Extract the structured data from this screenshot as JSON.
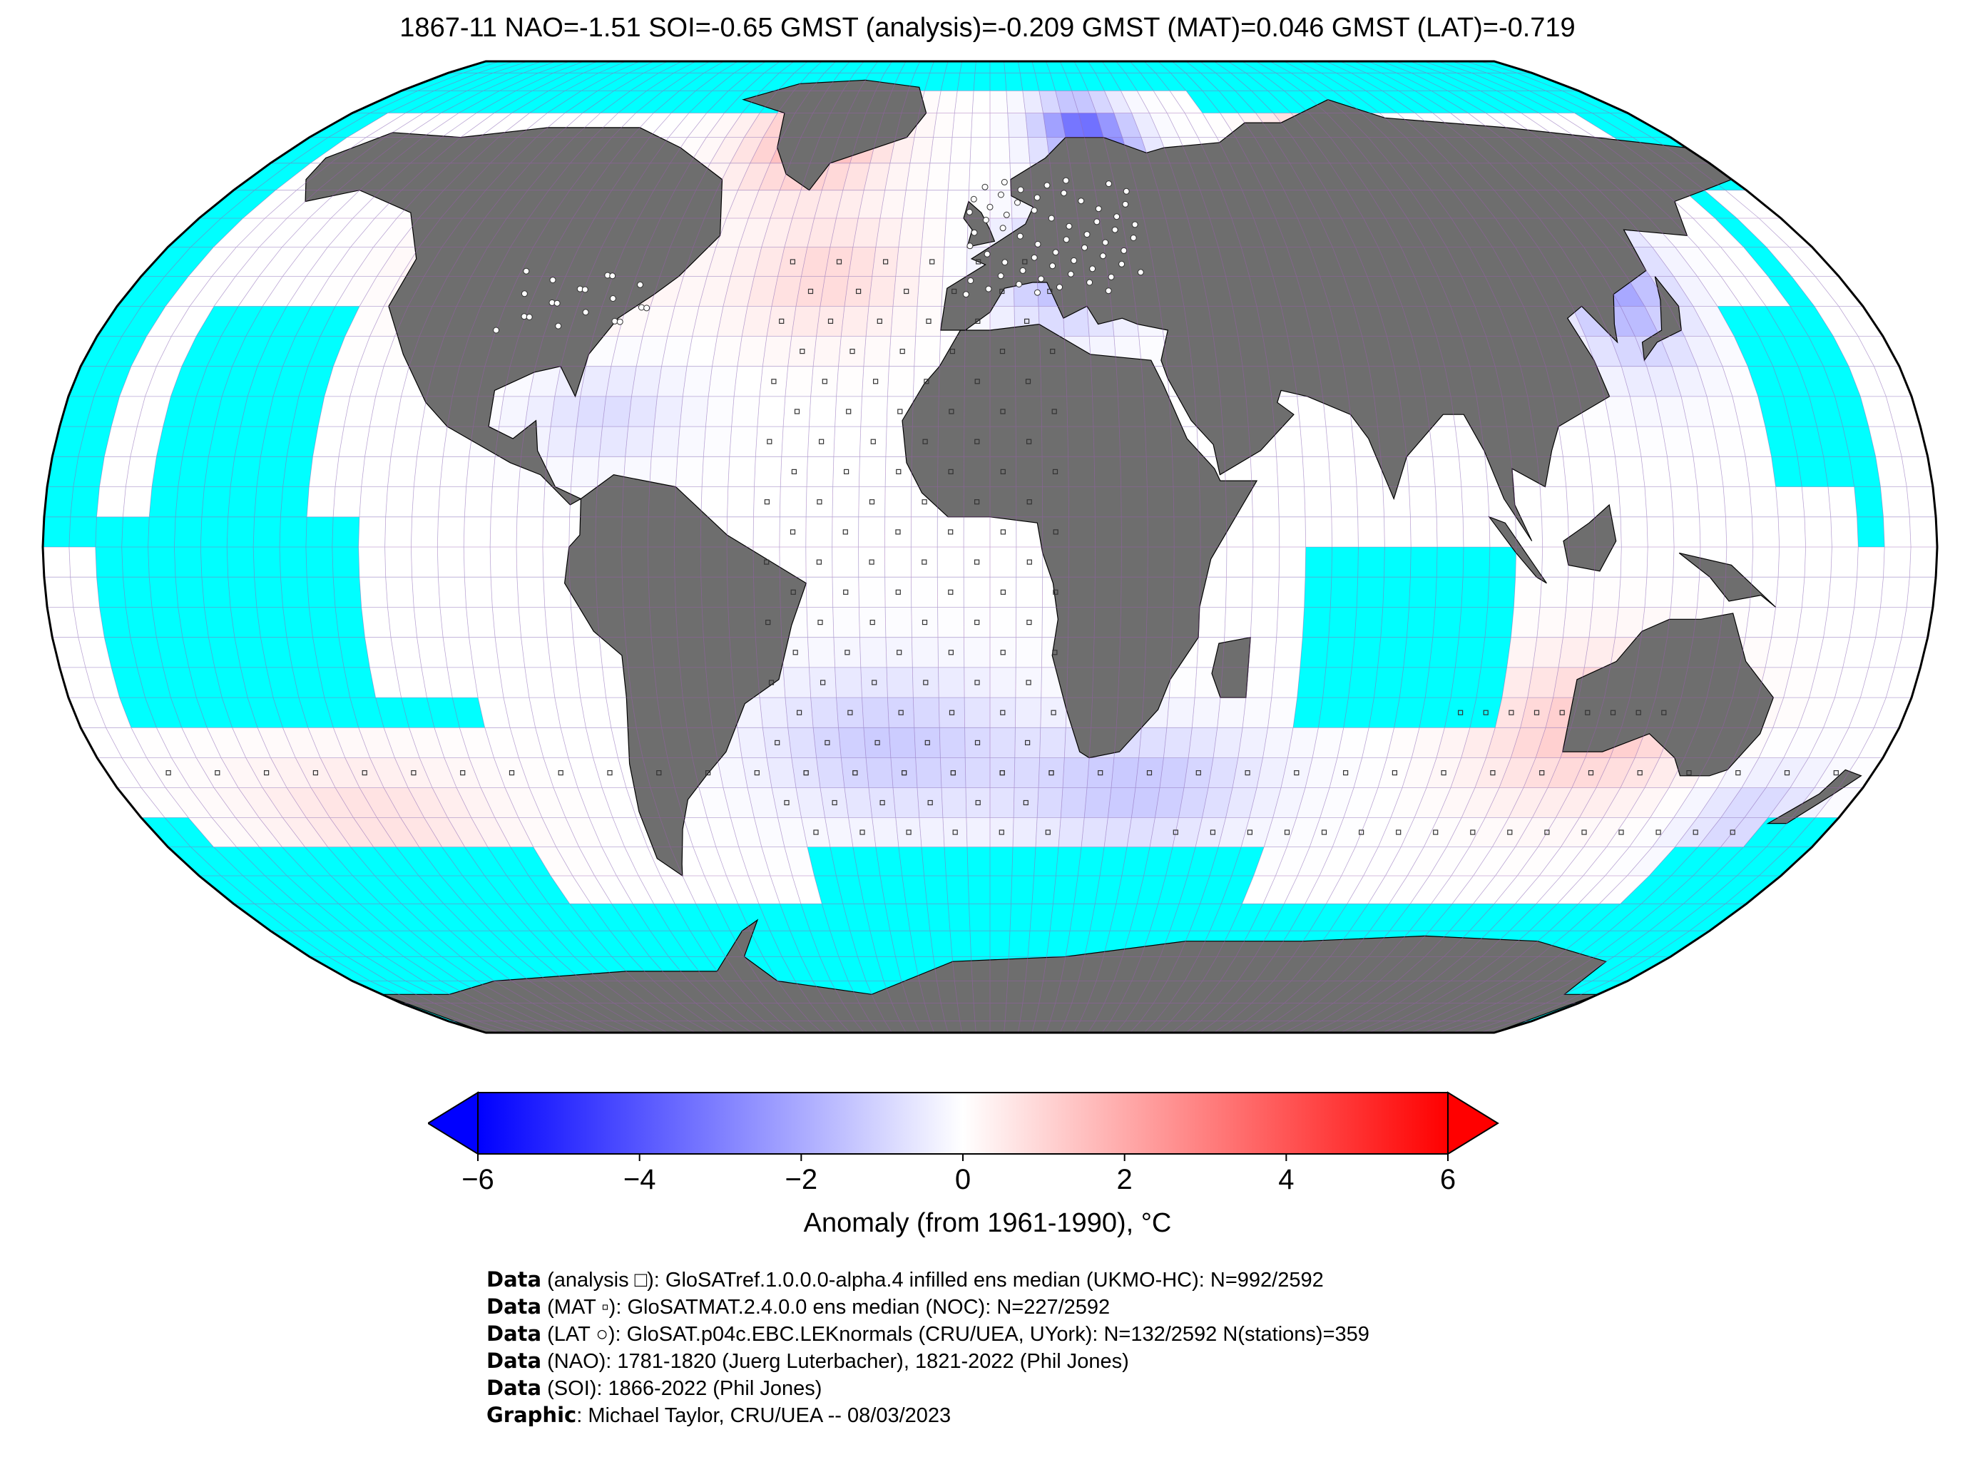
{
  "title": "1867-11 NAO=-1.51 SOI=-0.65 GMST (analysis)=-0.209 GMST (MAT)=0.046 GMST (LAT)=-0.719",
  "colors": {
    "ocean_no_data": "#00ffff",
    "land_no_data": "#6e6e6e",
    "grid_line": "#9b5fb0",
    "coast_line": "#000000",
    "warm": "#ff0000",
    "neutral": "#ffffff",
    "cool": "#0000ff"
  },
  "map": {
    "projection": "Robinson",
    "grid_resolution_deg": 5,
    "marker_legend": [
      "analysis square",
      "MAT small square",
      "LAT circle"
    ]
  },
  "colorbar": {
    "min": -6,
    "max": 6,
    "extend": "both",
    "ticks": [
      "−6",
      "−4",
      "−2",
      "0",
      "2",
      "4",
      "6"
    ],
    "tick_values": [
      -6,
      -4,
      -2,
      0,
      2,
      4,
      6
    ],
    "label": "Anomaly (from 1961-1990), °C"
  },
  "credits": [
    {
      "bold": "Data",
      "text": " (analysis □): GloSATref.1.0.0.0-alpha.4 infilled ens median (UKMO-HC): N=992/2592"
    },
    {
      "bold": "Data",
      "text": " (MAT ▫): GloSATMAT.2.4.0.0 ens median (NOC): N=227/2592"
    },
    {
      "bold": "Data",
      "text": " (LAT ○): GloSAT.p04c.EBC.LEKnormals (CRU/UEA, UYork): N=132/2592 N(stations)=359"
    },
    {
      "bold": "Data",
      "text": " (NAO): 1781-1820 (Juerg Luterbacher), 1821-2022 (Phil Jones)"
    },
    {
      "bold": "Data",
      "text": " (SOI): 1866-2022 (Phil Jones)"
    },
    {
      "bold": "Graphic",
      "text": ": Michael Taylor, CRU/UEA -- 08/03/2023"
    }
  ]
}
